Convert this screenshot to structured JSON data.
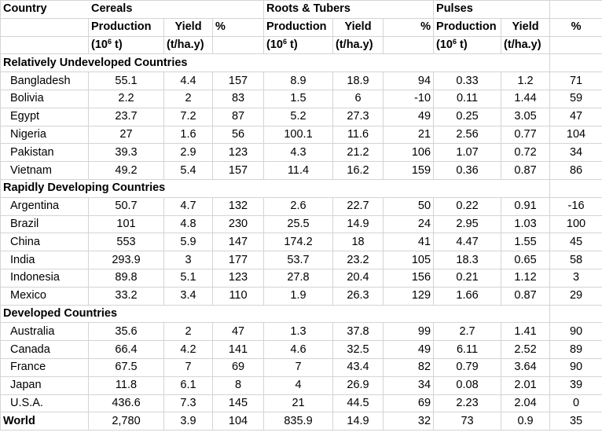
{
  "headers": {
    "country": "Country",
    "groups": [
      "Cereals",
      "Roots & Tubers",
      "Pulses"
    ],
    "sub1": {
      "production": "Production",
      "yield": "Yield",
      "percent": "%"
    },
    "sub2": {
      "production_unit": "(10",
      "production_unit_sup": "6",
      "production_unit_end": " t)",
      "yield_unit": "(t/ha.y)"
    }
  },
  "sections": [
    {
      "title": "Relatively Undeveloped Countries",
      "rows": [
        [
          "Bangladesh",
          "55.1",
          "4.4",
          "157",
          "8.9",
          "18.9",
          "94",
          "0.33",
          "1.2",
          "71"
        ],
        [
          "Bolivia",
          "2.2",
          "2",
          "83",
          "1.5",
          "6",
          "-10",
          "0.11",
          "1.44",
          "59"
        ],
        [
          "Egypt",
          "23.7",
          "7.2",
          "87",
          "5.2",
          "27.3",
          "49",
          "0.25",
          "3.05",
          "47"
        ],
        [
          "Nigeria",
          "27",
          "1.6",
          "56",
          "100.1",
          "11.6",
          "21",
          "2.56",
          "0.77",
          "104"
        ],
        [
          "Pakistan",
          "39.3",
          "2.9",
          "123",
          "4.3",
          "21.2",
          "106",
          "1.07",
          "0.72",
          "34"
        ],
        [
          "Vietnam",
          "49.2",
          "5.4",
          "157",
          "11.4",
          "16.2",
          "159",
          "0.36",
          "0.87",
          "86"
        ]
      ]
    },
    {
      "title": "Rapidly Developing Countries",
      "rows": [
        [
          "Argentina",
          "50.7",
          "4.7",
          "132",
          "2.6",
          "22.7",
          "50",
          "0.22",
          "0.91",
          "-16"
        ],
        [
          "Brazil",
          "101",
          "4.8",
          "230",
          "25.5",
          "14.9",
          "24",
          "2.95",
          "1.03",
          "100"
        ],
        [
          "China",
          "553",
          "5.9",
          "147",
          "174.2",
          "18",
          "41",
          "4.47",
          "1.55",
          "45"
        ],
        [
          "India",
          "293.9",
          "3",
          "177",
          "53.7",
          "23.2",
          "105",
          "18.3",
          "0.65",
          "58"
        ],
        [
          "Indonesia",
          "89.8",
          "5.1",
          "123",
          "27.8",
          "20.4",
          "156",
          "0.21",
          "1.12",
          "3"
        ],
        [
          "Mexico",
          "33.2",
          "3.4",
          "110",
          "1.9",
          "26.3",
          "129",
          "1.66",
          "0.87",
          "29"
        ]
      ]
    },
    {
      "title": "Developed Countries",
      "rows": [
        [
          "Australia",
          "35.6",
          "2",
          "47",
          "1.3",
          "37.8",
          "99",
          "2.7",
          "1.41",
          "90"
        ],
        [
          "Canada",
          "66.4",
          "4.2",
          "141",
          "4.6",
          "32.5",
          "49",
          "6.11",
          "2.52",
          "89"
        ],
        [
          "France",
          "67.5",
          "7",
          "69",
          "7",
          "43.4",
          "82",
          "0.79",
          "3.64",
          "90"
        ],
        [
          "Japan",
          "11.8",
          "6.1",
          "8",
          "4",
          "26.9",
          "34",
          "0.08",
          "2.01",
          "39"
        ],
        [
          "U.S.A.",
          "436.6",
          "7.3",
          "145",
          "21",
          "44.5",
          "69",
          "2.23",
          "2.04",
          "0"
        ]
      ]
    }
  ],
  "total": [
    "World",
    "2,780",
    "3.9",
    "104",
    "835.9",
    "14.9",
    "32",
    "73",
    "0.9",
    "35"
  ]
}
